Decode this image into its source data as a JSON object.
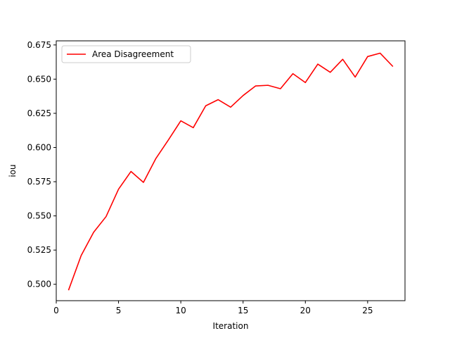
{
  "chart_data": {
    "type": "line",
    "title": "",
    "xlabel": "Iteration",
    "ylabel": "iou",
    "xlim": [
      0,
      28
    ],
    "ylim": [
      0.488,
      0.678
    ],
    "xticks": [
      0,
      5,
      10,
      15,
      20,
      25
    ],
    "yticks": [
      0.5,
      0.525,
      0.55,
      0.575,
      0.6,
      0.625,
      0.65,
      0.675
    ],
    "ytick_labels": [
      "0.500",
      "0.525",
      "0.550",
      "0.575",
      "0.600",
      "0.625",
      "0.650",
      "0.675"
    ],
    "grid": false,
    "legend_position": "upper-left",
    "series": [
      {
        "name": "Area Disagreement",
        "color": "#ff0000",
        "x": [
          1,
          2,
          3,
          4,
          5,
          6,
          7,
          8,
          9,
          10,
          11,
          12,
          13,
          14,
          15,
          16,
          17,
          18,
          19,
          20,
          21,
          22,
          23,
          24,
          25,
          26,
          27
        ],
        "y": [
          0.496,
          0.521,
          0.538,
          0.5495,
          0.5695,
          0.5825,
          0.5745,
          0.592,
          0.6055,
          0.6195,
          0.6145,
          0.6305,
          0.635,
          0.6295,
          0.638,
          0.645,
          0.6455,
          0.643,
          0.654,
          0.6475,
          0.661,
          0.655,
          0.6645,
          0.6515,
          0.6665,
          0.669,
          0.6595
        ]
      }
    ]
  }
}
